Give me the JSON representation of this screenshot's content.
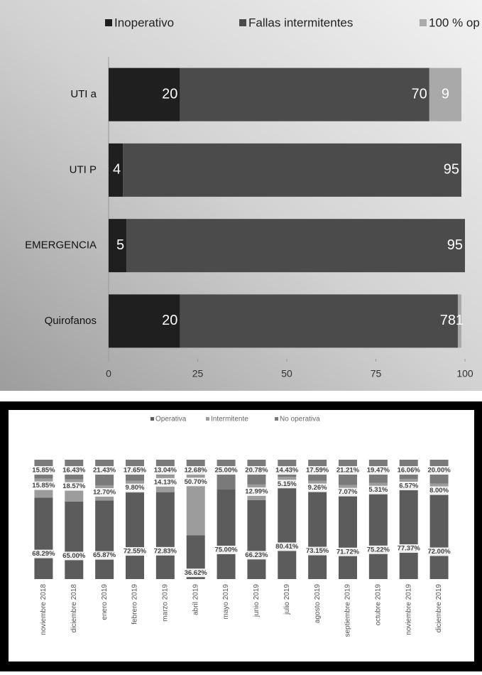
{
  "chart_data": [
    {
      "type": "barh",
      "stacked": true,
      "categories": [
        "UTI a",
        "UTI P",
        "EMERGENCIA",
        "Quirofanos"
      ],
      "series": [
        {
          "name": "Inoperativo",
          "color": "#1f1f1f",
          "values": [
            20,
            4,
            5,
            20
          ]
        },
        {
          "name": "Fallas intermitentes",
          "color": "#4b4b4b",
          "values": [
            70,
            95,
            95,
            78
          ]
        },
        {
          "name": "100 % op",
          "color": "#a9a9a9",
          "values": [
            9,
            null,
            null,
            1
          ]
        }
      ],
      "xlim": [
        0,
        100
      ],
      "xticks": [
        0,
        25,
        50,
        75,
        100
      ]
    },
    {
      "type": "bar",
      "stacked": true,
      "categories": [
        "noviembre 2018",
        "diciembre 2018",
        "enero 2019",
        "febrero 2019",
        "marzo 2019",
        "abril 2019",
        "mayo 2019",
        "junio 2019",
        "julio 2019",
        "agosto 2019",
        "septiembre 2019",
        "octubre 2019",
        "noviembre 2019",
        "diciembre 2019"
      ],
      "series": [
        {
          "name": "Operativa",
          "color": "#5c5c5c",
          "values": [
            68.29,
            65.0,
            65.87,
            72.55,
            72.83,
            36.62,
            75.0,
            66.23,
            80.41,
            73.15,
            71.72,
            75.22,
            77.37,
            72.0
          ],
          "value_labels": [
            "68.29%",
            "65.00%",
            "65.87%",
            "72.55%",
            "72.83%",
            "36.62%",
            "75.00%",
            "66.23%",
            "80.41%",
            "73.15%",
            "71.72%",
            "75.22%",
            "77.37%",
            "72.00%"
          ]
        },
        {
          "name": "Intermitente",
          "color": "#9c9c9c",
          "values": [
            15.85,
            18.57,
            12.7,
            9.8,
            14.13,
            50.7,
            null,
            12.99,
            5.15,
            9.26,
            7.07,
            5.31,
            6.57,
            8.0
          ],
          "value_labels": [
            "15.85%",
            "18.57%",
            "12.70%",
            "9.80%",
            "14.13%",
            "50.70%",
            null,
            "12.99%",
            "5.15%",
            "9.26%",
            "7.07%",
            "5.31%",
            "6.57%",
            "8.00%"
          ]
        },
        {
          "name": "No operativa",
          "color": "#7a7a7a",
          "values": [
            15.85,
            16.43,
            21.43,
            17.65,
            13.04,
            12.68,
            25.0,
            20.78,
            14.43,
            17.59,
            21.21,
            19.47,
            16.06,
            20.0
          ],
          "value_labels": [
            "15.85%",
            "16.43%",
            "21.43%",
            "17.65%",
            "13.04%",
            "12.68%",
            "25.00%",
            "20.78%",
            "14.43%",
            "17.59%",
            "21.21%",
            "19.47%",
            "16.06%",
            "20.00%"
          ]
        }
      ],
      "ylim": [
        0,
        100
      ]
    }
  ]
}
